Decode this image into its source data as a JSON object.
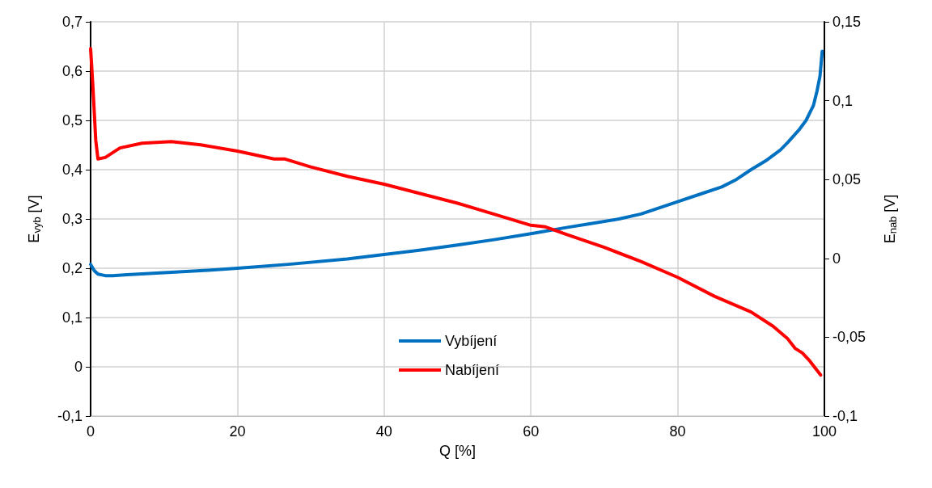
{
  "chart_data": {
    "type": "line",
    "xlabel": "Q [%]",
    "ylabel": "E$_{vyb}$ [V]",
    "y2label": "E$_{nab}$ [V]",
    "xlim": [
      0,
      100
    ],
    "xticks": [
      0,
      20,
      40,
      60,
      80,
      100
    ],
    "ylim": [
      -0.1,
      0.7
    ],
    "yticks": [
      {
        "value": -0.1,
        "label": "-0,1"
      },
      0,
      {
        "value": 0.1,
        "label": "0,1"
      },
      {
        "value": 0.2,
        "label": "0,2"
      },
      {
        "value": 0.3,
        "label": "0,3"
      },
      {
        "value": 0.4,
        "label": "0,4"
      },
      {
        "value": 0.5,
        "label": "0,5"
      },
      {
        "value": 0.6,
        "label": "0,6"
      },
      {
        "value": 0.7,
        "label": "0,7"
      }
    ],
    "y2lim": [
      -0.1,
      0.15
    ],
    "y2ticks": [
      {
        "value": -0.1,
        "label": "-0,1"
      },
      {
        "value": -0.05,
        "label": "-0,05"
      },
      0,
      {
        "value": 0.05,
        "label": "0,05"
      },
      {
        "value": 0.1,
        "label": "0,1"
      },
      {
        "value": 0.15,
        "label": "0,15"
      }
    ],
    "grid": true,
    "legend": "bottom",
    "marker": "none",
    "line_style": "solid",
    "series": [
      {
        "name": "Vybíjení",
        "color": "#0070c0",
        "x": [
          0,
          0.5,
          1,
          2,
          3,
          5,
          10,
          15,
          20,
          27,
          35,
          40,
          45,
          50,
          55,
          60,
          65,
          68,
          72,
          75,
          80,
          83,
          86,
          88,
          90,
          92,
          94,
          95,
          96.5,
          97.5,
          98.5,
          99,
          99.4,
          99.7
        ],
        "values": [
          0.208,
          0.195,
          0.188,
          0.185,
          0.185,
          0.187,
          0.191,
          0.195,
          0.2,
          0.208,
          0.219,
          0.228,
          0.237,
          0.247,
          0.258,
          0.27,
          0.283,
          0.29,
          0.3,
          0.31,
          0.335,
          0.35,
          0.365,
          0.38,
          0.4,
          0.418,
          0.44,
          0.455,
          0.48,
          0.5,
          0.53,
          0.56,
          0.59,
          0.64
        ]
      },
      {
        "name": "Nabíjení",
        "color": "#ff0000",
        "axis": "y2",
        "x": [
          0,
          0.3,
          0.7,
          1,
          2,
          4,
          7,
          11,
          15,
          20,
          25,
          26.5,
          30,
          35,
          40,
          45,
          50,
          55,
          60,
          62,
          65,
          70,
          75,
          80,
          85,
          90,
          93,
          95,
          96,
          97,
          98,
          99.5
        ],
        "values": [
          0.133,
          0.11,
          0.075,
          0.063,
          0.064,
          0.07,
          0.073,
          0.074,
          0.072,
          0.068,
          0.063,
          0.063,
          0.058,
          0.052,
          0.047,
          0.041,
          0.035,
          0.028,
          0.021,
          0.02,
          0.015,
          0.007,
          -0.002,
          -0.012,
          -0.024,
          -0.034,
          -0.043,
          -0.051,
          -0.057,
          -0.06,
          -0.065,
          -0.074
        ]
      }
    ]
  }
}
